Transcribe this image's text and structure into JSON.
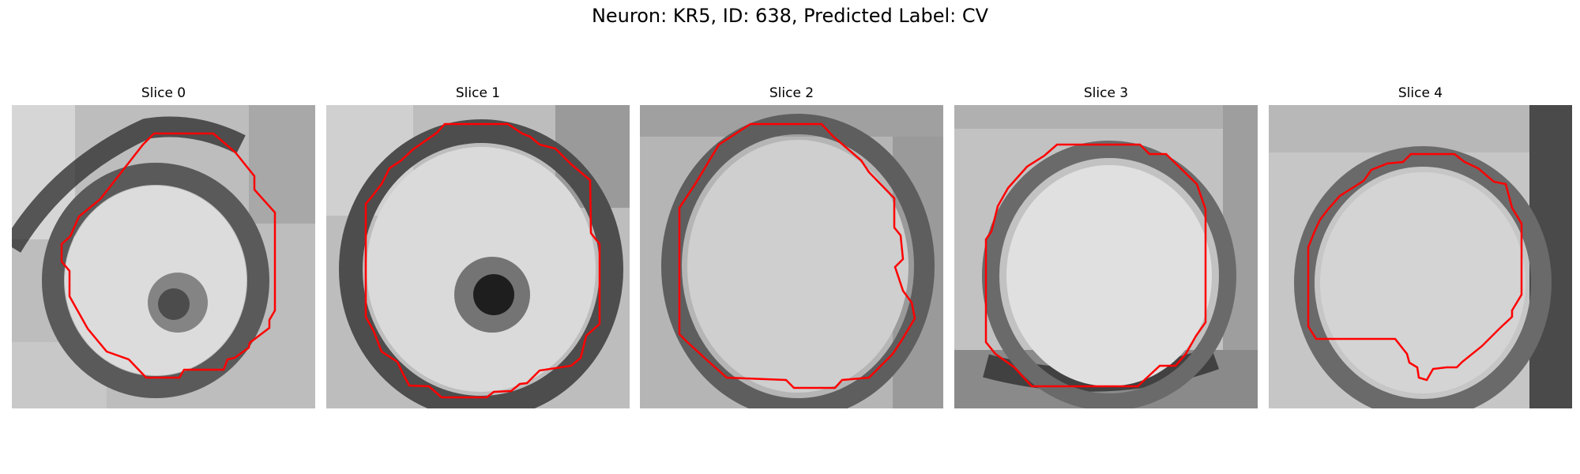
{
  "figure": {
    "title": "Neuron: KR5, ID: 638, Predicted Label: CV"
  },
  "panels": [
    {
      "title": "Slice 0"
    },
    {
      "title": "Slice 1"
    },
    {
      "title": "Slice 2"
    },
    {
      "title": "Slice 3"
    },
    {
      "title": "Slice 4"
    }
  ],
  "style": {
    "contour_color": "#ff0000",
    "image_colormap": "gray"
  }
}
